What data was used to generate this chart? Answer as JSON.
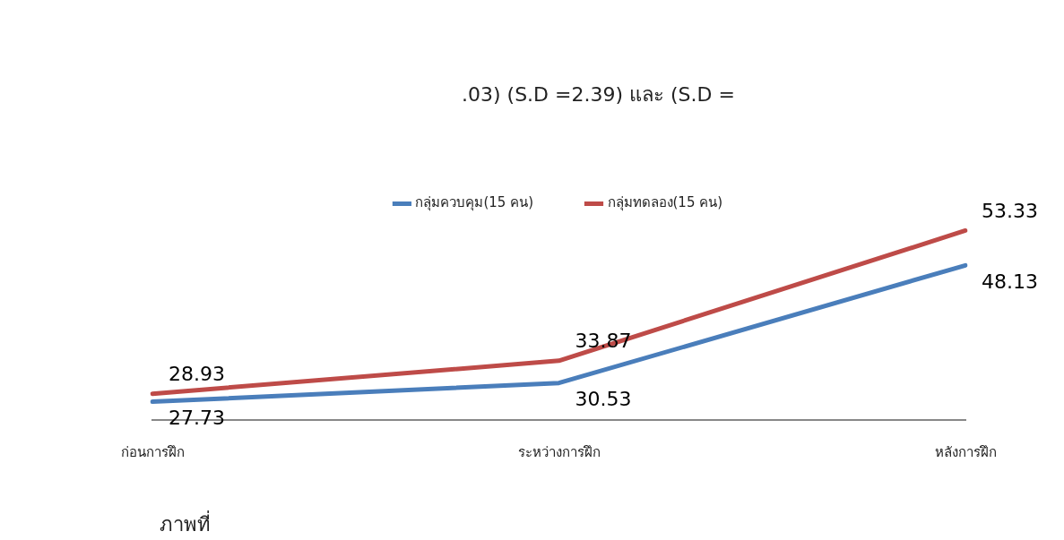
{
  "chart_data": {
    "type": "line",
    "categories": [
      "ก่อนการฝึก",
      "ระหว่างการฝึก",
      "หลังการฝึก"
    ],
    "series": [
      {
        "name": "กลุ่มควบคุม(15 คน)",
        "color": "#4a7ebb",
        "values": [
          27.73,
          30.53,
          48.13
        ]
      },
      {
        "name": "กลุ่มทดลอง(15 คน)",
        "color": "#be4b48",
        "values": [
          28.93,
          33.87,
          53.33
        ]
      }
    ],
    "data_labels": true,
    "legend": "top",
    "grid": false,
    "annotations": [
      ".03) (S.D =2.39) และ (S.D =",
      "ภาพที่"
    ]
  }
}
